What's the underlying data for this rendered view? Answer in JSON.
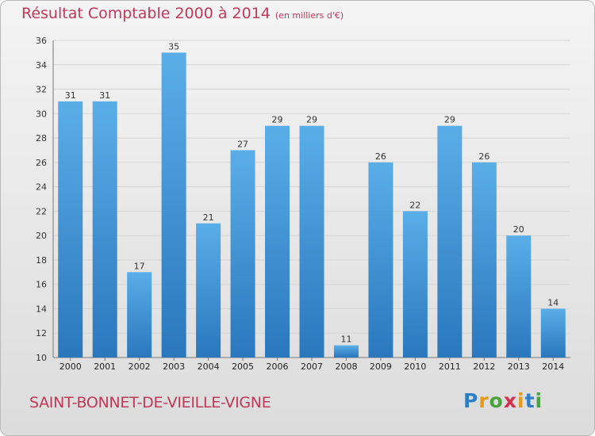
{
  "header": {
    "title": "Résultat Comptable 2000 à 2014",
    "subtitle": "(en milliers d'€)"
  },
  "footer": {
    "city": "SAINT-BONNET-DE-VIEILLE-VIGNE",
    "logo_letters": [
      "P",
      "r",
      "o",
      "x",
      "i",
      "t",
      "i"
    ],
    "logo_colors": [
      "#2f7fc6",
      "#e59a1a",
      "#4aa33f",
      "#d3304e",
      "#e59a1a",
      "#2f7fc6",
      "#4aa33f"
    ]
  },
  "colors": {
    "bar_light": "#5aaee8",
    "bar_dark": "#2a77bd",
    "grid": "#d6d6d6",
    "title": "#c1395a"
  },
  "chart_data": {
    "type": "bar",
    "categories": [
      "2000",
      "2001",
      "2002",
      "2003",
      "2004",
      "2005",
      "2006",
      "2007",
      "2008",
      "2009",
      "2010",
      "2011",
      "2012",
      "2013",
      "2014"
    ],
    "values": [
      31,
      31,
      17,
      35,
      21,
      27,
      29,
      29,
      11,
      26,
      22,
      29,
      26,
      20,
      14
    ],
    "ylim": [
      10,
      36
    ],
    "yticks": [
      10,
      12,
      14,
      16,
      18,
      20,
      22,
      24,
      26,
      28,
      30,
      32,
      34,
      36
    ],
    "grid": true
  }
}
